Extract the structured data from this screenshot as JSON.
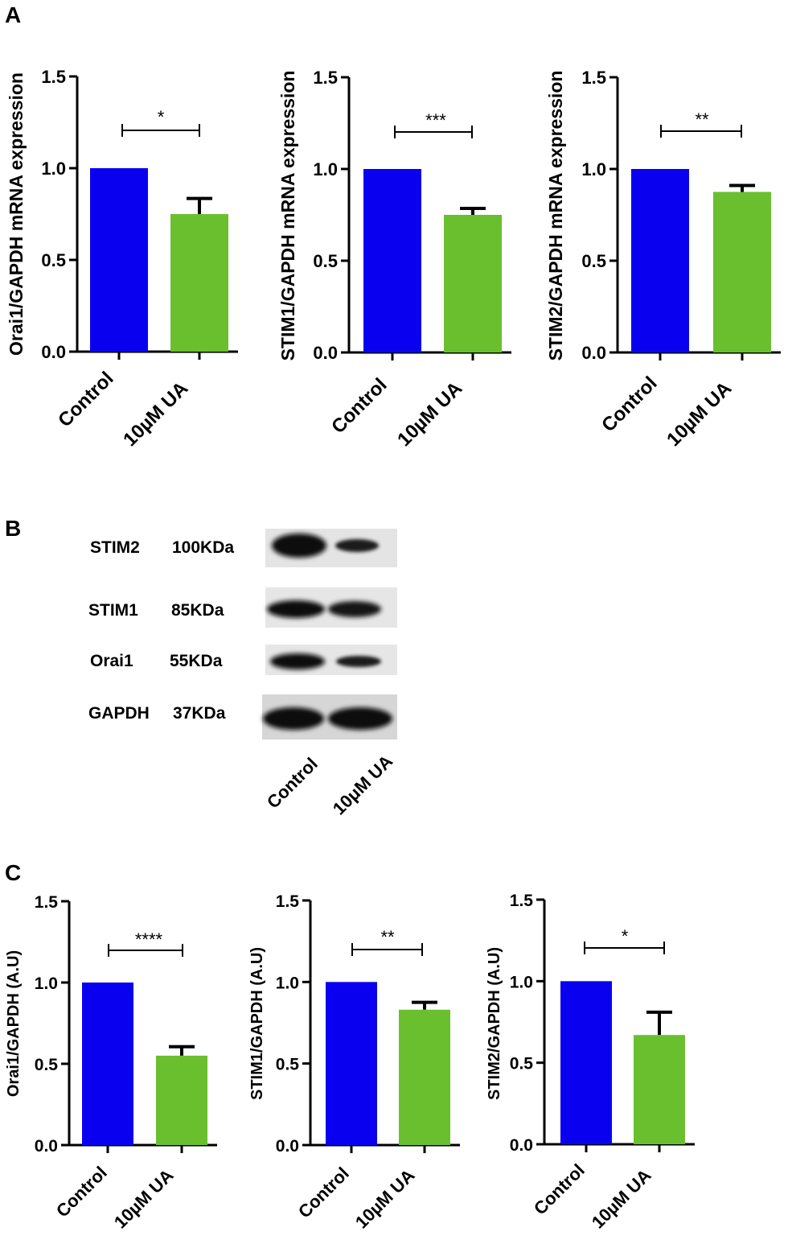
{
  "colors": {
    "control": "#0a00f0",
    "treatment": "#6abf2e",
    "axis": "#000000"
  },
  "panels": {
    "a": "A",
    "b": "B",
    "c": "C"
  },
  "chart_data": [
    {
      "id": "a1",
      "type": "bar",
      "panel": "A",
      "categories": [
        "Control",
        "10µM UA"
      ],
      "values": [
        1.0,
        0.75
      ],
      "errors": [
        0,
        0.085
      ],
      "ylabel": "Orai1/GAPDH mRNA expression",
      "ylim": [
        0,
        1.5
      ],
      "yticks": [
        "0.0",
        "0.5",
        "1.0",
        "1.5"
      ],
      "significance": "*"
    },
    {
      "id": "a2",
      "type": "bar",
      "panel": "A",
      "categories": [
        "Control",
        "10µM UA"
      ],
      "values": [
        1.0,
        0.75
      ],
      "errors": [
        0,
        0.035
      ],
      "ylabel": "STIM1/GAPDH mRNA expression",
      "ylim": [
        0,
        1.5
      ],
      "yticks": [
        "0.0",
        "0.5",
        "1.0",
        "1.5"
      ],
      "significance": "***"
    },
    {
      "id": "a3",
      "type": "bar",
      "panel": "A",
      "categories": [
        "Control",
        "10µM UA"
      ],
      "values": [
        1.0,
        0.875
      ],
      "errors": [
        0,
        0.035
      ],
      "ylabel": "STIM2/GAPDH mRNA expression",
      "ylim": [
        0,
        1.5
      ],
      "yticks": [
        "0.0",
        "0.5",
        "1.0",
        "1.5"
      ],
      "significance": "**"
    },
    {
      "id": "c1",
      "type": "bar",
      "panel": "C",
      "categories": [
        "Control",
        "10µM UA"
      ],
      "values": [
        1.0,
        0.55
      ],
      "errors": [
        0,
        0.055
      ],
      "ylabel": "Orai1/GAPDH (A.U)",
      "ylim": [
        0,
        1.5
      ],
      "yticks": [
        "0.0",
        "0.5",
        "1.0",
        "1.5"
      ],
      "significance": "****"
    },
    {
      "id": "c2",
      "type": "bar",
      "panel": "C",
      "categories": [
        "Control",
        "10µM UA"
      ],
      "values": [
        1.0,
        0.83
      ],
      "errors": [
        0,
        0.045
      ],
      "ylabel": "STIM1/GAPDH (A.U)",
      "ylim": [
        0,
        1.5
      ],
      "yticks": [
        "0.0",
        "0.5",
        "1.0",
        "1.5"
      ],
      "significance": "**"
    },
    {
      "id": "c3",
      "type": "bar",
      "panel": "C",
      "categories": [
        "Control",
        "10µM UA"
      ],
      "values": [
        1.0,
        0.67
      ],
      "errors": [
        0,
        0.14
      ],
      "ylabel": "STIM2/GAPDH (A.U)",
      "ylim": [
        0,
        1.5
      ],
      "yticks": [
        "0.0",
        "0.5",
        "1.0",
        "1.5"
      ],
      "significance": "*"
    }
  ],
  "western_blot": {
    "rows": [
      {
        "protein": "STIM2",
        "size": "100KDa"
      },
      {
        "protein": "STIM1",
        "size": "85KDa"
      },
      {
        "protein": "Orai1",
        "size": "55KDa"
      },
      {
        "protein": "GAPDH",
        "size": "37KDa"
      }
    ],
    "lanes": [
      "Control",
      "10μM UA"
    ]
  }
}
